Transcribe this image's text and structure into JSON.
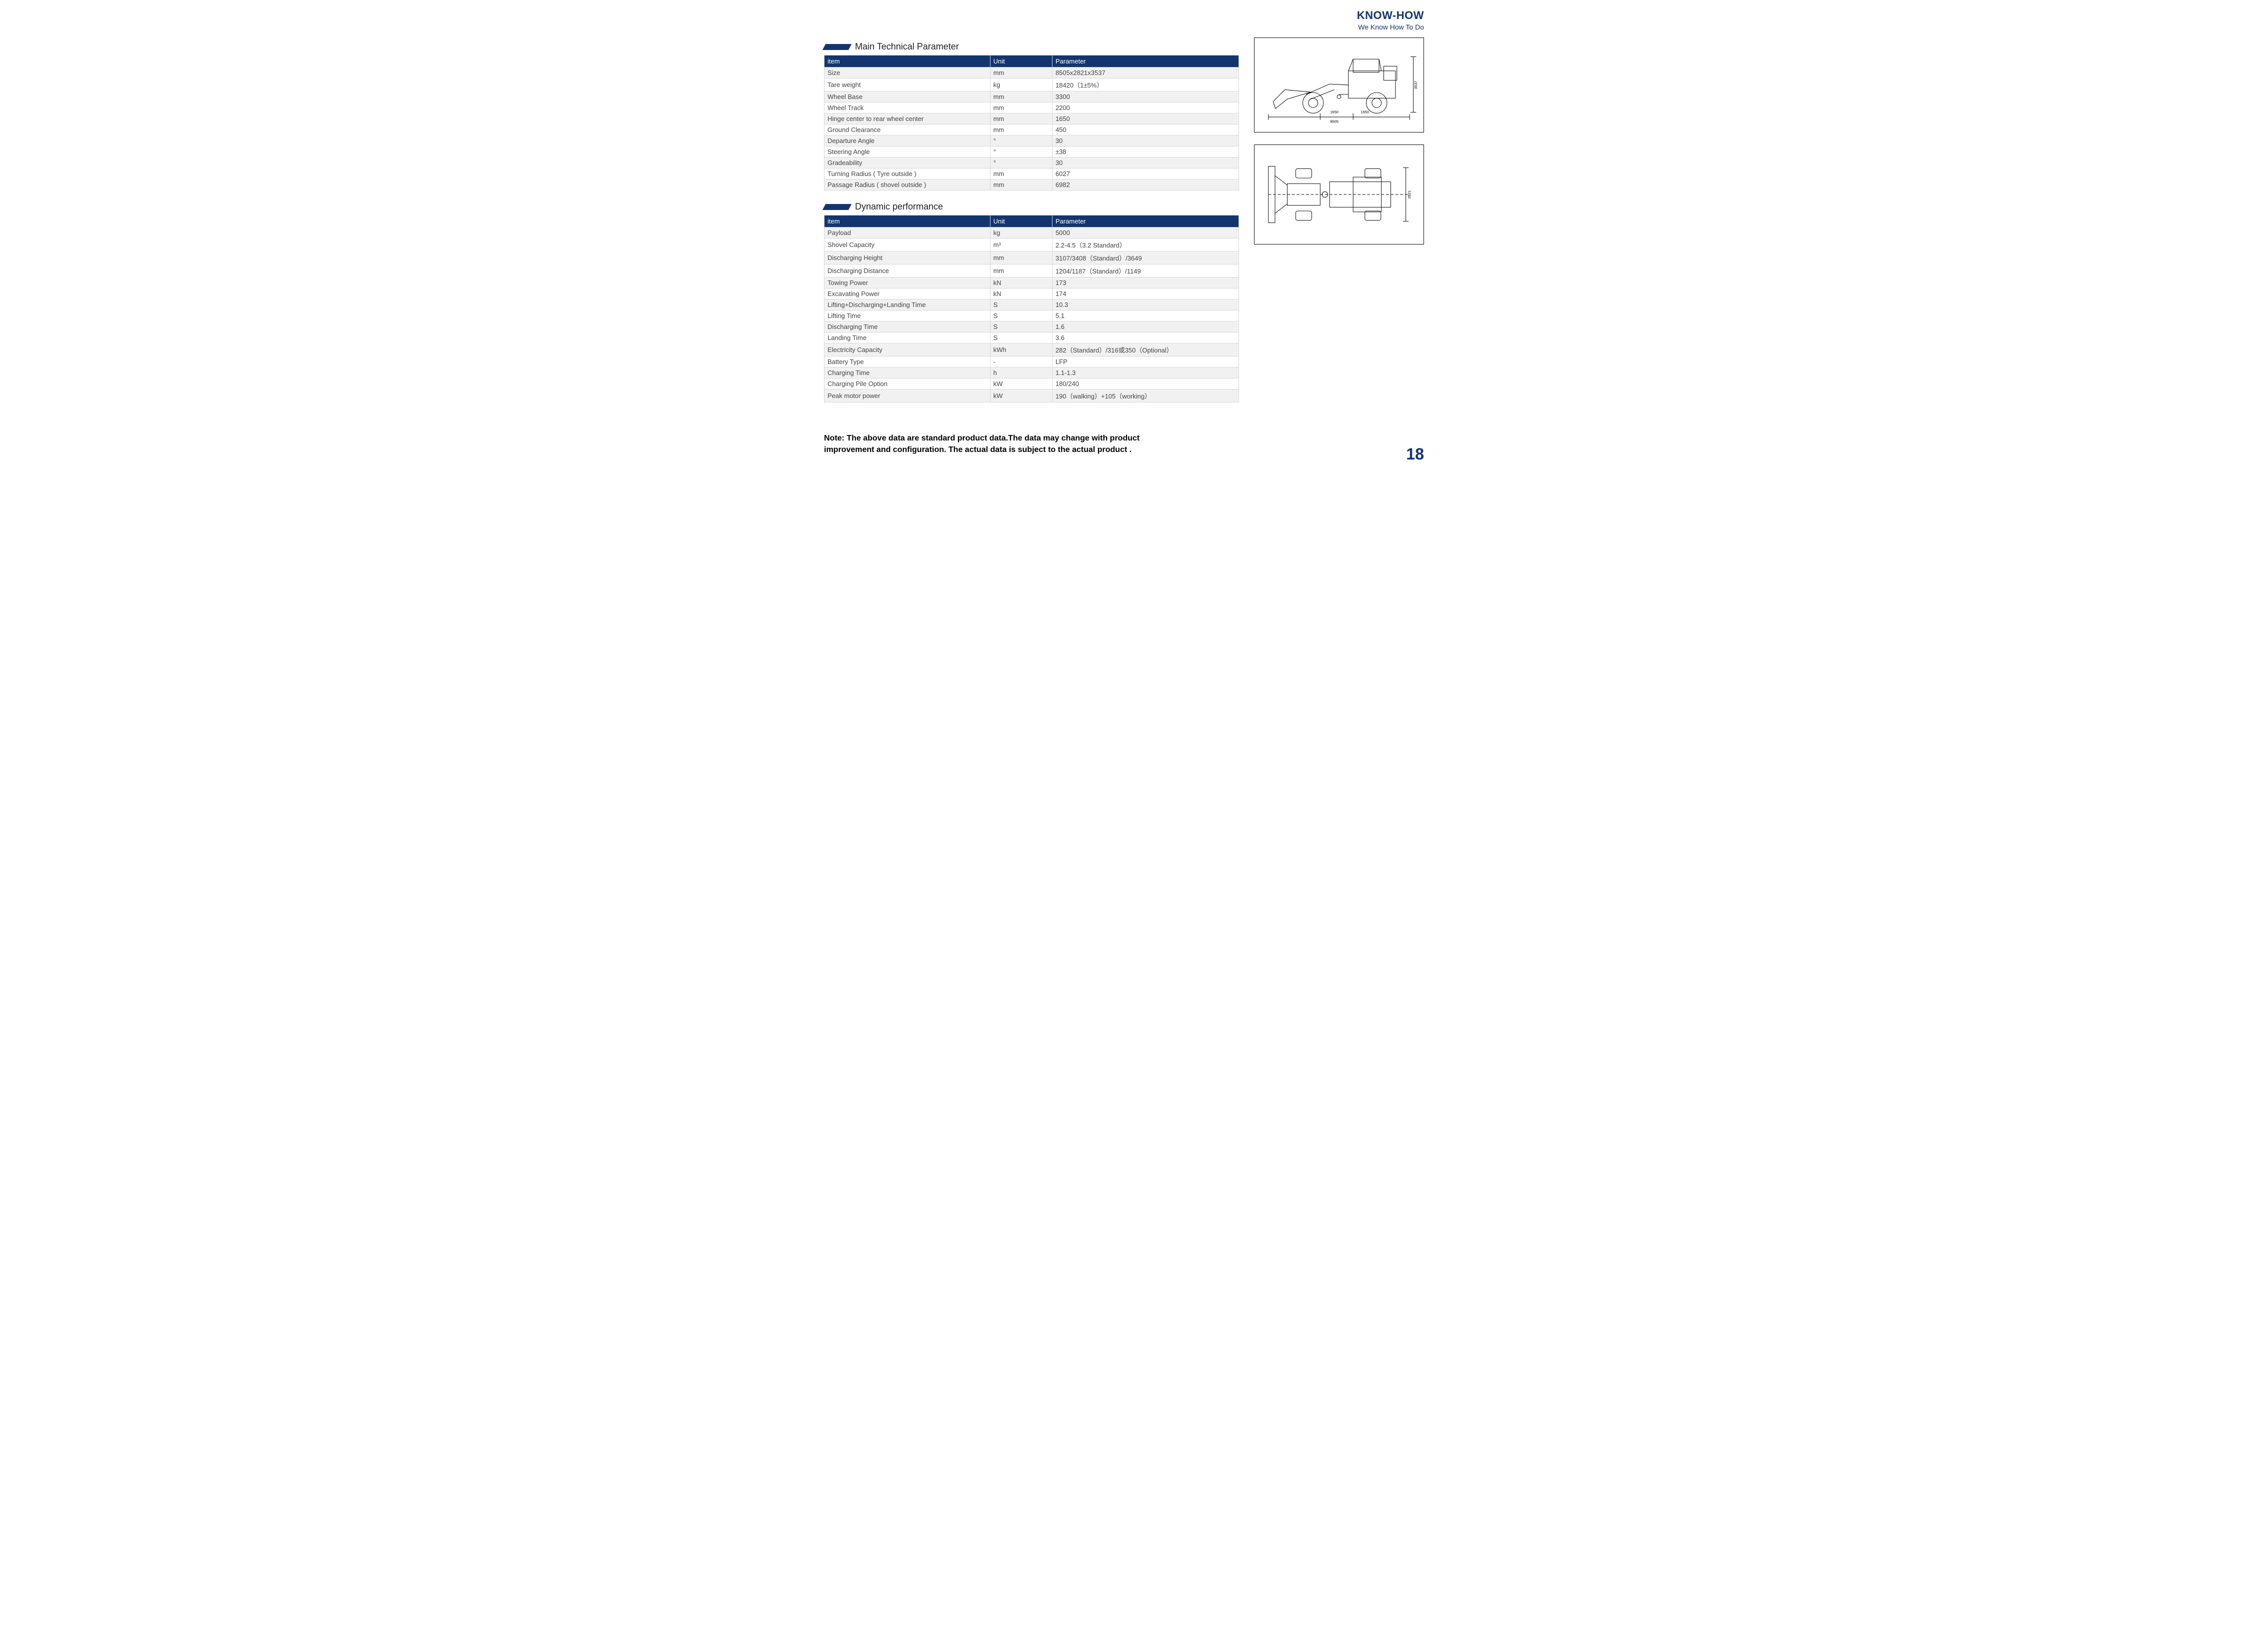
{
  "brand": {
    "title": "KNOW-HOW",
    "subtitle": "We Know How To Do"
  },
  "sections": {
    "mainTechnical": {
      "title": "Main Technical Parameter",
      "headers": {
        "item": "item",
        "unit": "Unit",
        "param": "Parameter"
      },
      "rows": [
        {
          "item": "Size",
          "unit": "mm",
          "param": "8505x2821x3537"
        },
        {
          "item": "Tare weight",
          "unit": "kg",
          "param": "18420（1±5%）"
        },
        {
          "item": "Wheel Base",
          "unit": "mm",
          "param": "3300"
        },
        {
          "item": "Wheel Track",
          "unit": "mm",
          "param": "2200"
        },
        {
          "item": "Hinge center to rear wheel center",
          "unit": "mm",
          "param": "1650"
        },
        {
          "item": "Ground Clearance",
          "unit": "mm",
          "param": "450"
        },
        {
          "item": "Departure Angle",
          "unit": "°",
          "param": "30"
        },
        {
          "item": "Steering Angle",
          "unit": "°",
          "param": "±38"
        },
        {
          "item": "Gradeability",
          "unit": "°",
          "param": "30"
        },
        {
          "item": "Turning Radius ( Tyre outside )",
          "unit": "mm",
          "param": "6027"
        },
        {
          "item": "Passage Radius ( shovel outside )",
          "unit": "mm",
          "param": "6982"
        }
      ]
    },
    "dynamic": {
      "title": "Dynamic performance",
      "headers": {
        "item": "item",
        "unit": "Unit",
        "param": "Parameter"
      },
      "rows": [
        {
          "item": "Payload",
          "unit": "kg",
          "param": "5000"
        },
        {
          "item": "Shovel Capacity",
          "unit": "m³",
          "param": "2.2-4.5（3.2 Standard）"
        },
        {
          "item": "Discharging Height",
          "unit": "mm",
          "param": "3107/3408（Standard）/3649"
        },
        {
          "item": "Discharging Distance",
          "unit": "mm",
          "param": "1204/1187（Standard）/1149"
        },
        {
          "item": "Towing Power",
          "unit": "kN",
          "param": "173"
        },
        {
          "item": "Excavating Power",
          "unit": "kN",
          "param": "174"
        },
        {
          "item": "Lifting+Discharging+Landing Time",
          "unit": "S",
          "param": "10.3"
        },
        {
          "item": "Lifting Time",
          "unit": "S",
          "param": "5.1"
        },
        {
          "item": "Discharging Time",
          "unit": "S",
          "param": "1.6"
        },
        {
          "item": "Landing Time",
          "unit": "S",
          "param": "3.6"
        },
        {
          "item": "Electricity Capacity",
          "unit": "kWh",
          "param": "282（Standard）/316或350（Optional）"
        },
        {
          "item": "Battery Type",
          "unit": "-",
          "param": "LFP"
        },
        {
          "item": "Charging Time",
          "unit": "h",
          "param": "1.1-1.3"
        },
        {
          "item": "Charging Pile Option",
          "unit": "kW",
          "param": "180/240"
        },
        {
          "item": "Peak motor power",
          "unit": "kW",
          "param": "190（walking）+105（working）"
        }
      ]
    }
  },
  "diagrams": {
    "side": {
      "type": "technical-drawing",
      "view": "side",
      "dim_labels": {
        "length": "8505",
        "seg1": "1650",
        "seg2": "1650",
        "height": "3537"
      },
      "stroke": "#000000",
      "label_fontsize": 8
    },
    "top": {
      "type": "technical-drawing",
      "view": "top",
      "dim_labels": {
        "width": "2821"
      },
      "stroke": "#000000",
      "label_fontsize": 8
    }
  },
  "note": "Note: The above data are standard product data.The data may change with product improvement and configuration. The actual data is subject to the actual product .",
  "pageNumber": "18",
  "style": {
    "accent": "#13356f",
    "header_bg": "#13356f",
    "header_text": "#ffffff",
    "row_alt_bg": "#f1f1f1",
    "border": "#d9d9d9",
    "body_fontsize": 13
  }
}
